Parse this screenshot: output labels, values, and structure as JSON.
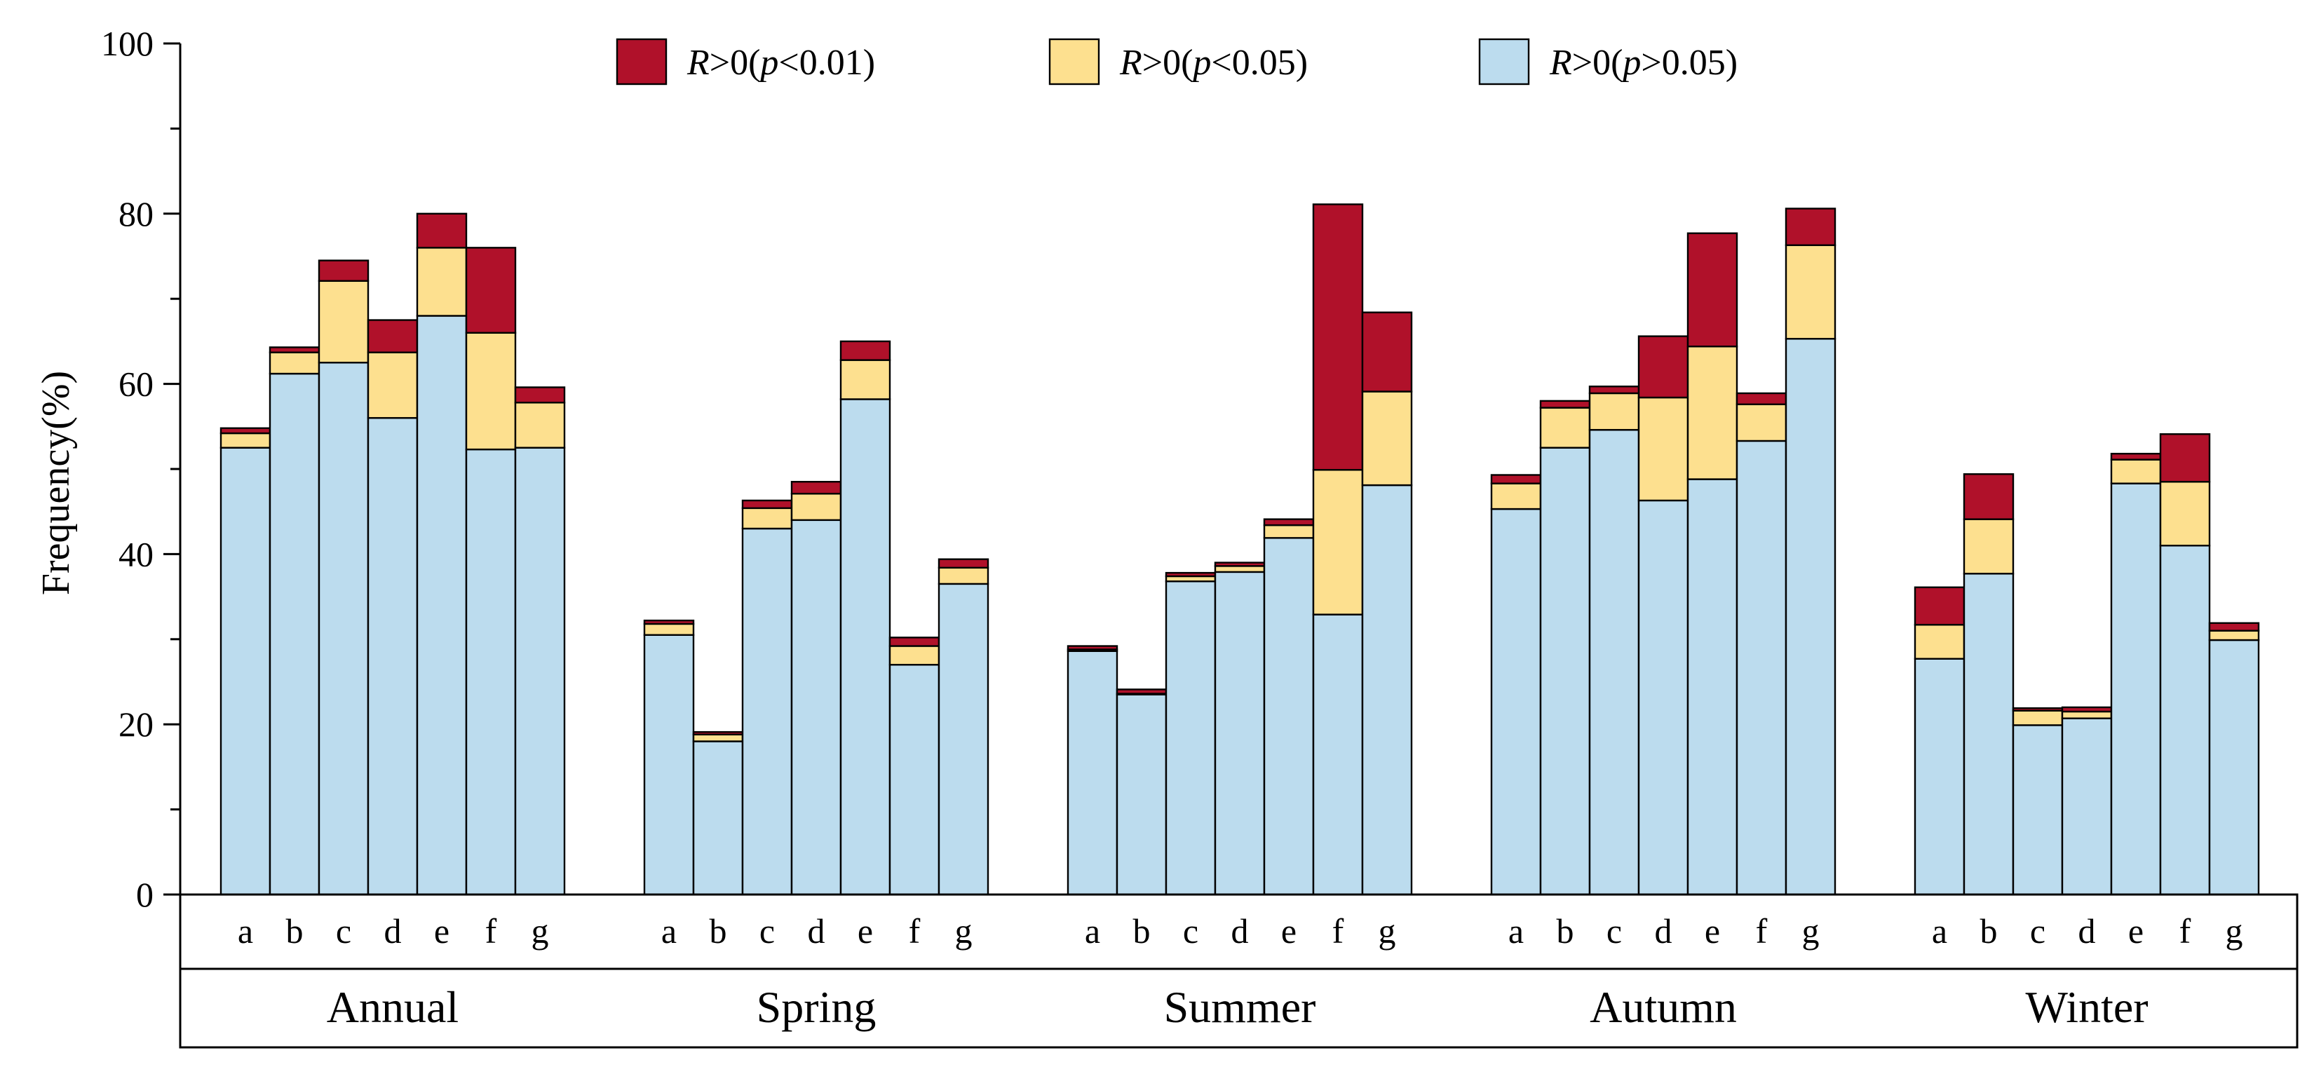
{
  "chart_data": {
    "type": "bar",
    "stacked": true,
    "title": "",
    "xlabel": "",
    "ylabel": "Frequency(%)",
    "ylim": [
      0,
      100
    ],
    "yticks": [
      "0",
      "20",
      "40",
      "60",
      "80",
      "100"
    ],
    "groups": [
      "Annual",
      "Spring",
      "Summer",
      "Autumn",
      "Winter"
    ],
    "categories": [
      "a",
      "b",
      "c",
      "d",
      "e",
      "f",
      "g"
    ],
    "legend": [
      {
        "key": "p001",
        "prefix": "R",
        "text": ">0(",
        "p": "p",
        "rest": "<0.01)",
        "color": "#b0112a"
      },
      {
        "key": "p005",
        "prefix": "R",
        "text": ">0(",
        "p": "p",
        "rest": "<0.05)",
        "color": "#fde08f"
      },
      {
        "key": "pns",
        "prefix": "R",
        "text": ">0(",
        "p": "p",
        "rest": ">0.05)",
        "color": "#bcdcee"
      }
    ],
    "series": [
      {
        "name": "R>0(p>0.05)",
        "color": "#bcdcee",
        "values": [
          [
            52.5,
            61.2,
            62.5,
            56.0,
            68.0,
            52.3,
            52.5
          ],
          [
            30.5,
            18.0,
            43.0,
            44.0,
            58.2,
            27.0,
            36.5
          ],
          [
            28.6,
            23.5,
            36.8,
            37.9,
            41.9,
            32.9,
            48.1
          ],
          [
            45.3,
            52.5,
            54.6,
            46.3,
            48.8,
            53.3,
            65.3
          ],
          [
            27.7,
            37.7,
            19.9,
            20.7,
            48.3,
            41.0,
            29.9
          ]
        ]
      },
      {
        "name": "R>0(p<0.05)",
        "color": "#fde08f",
        "values": [
          [
            1.7,
            2.5,
            9.6,
            7.7,
            8.0,
            13.7,
            5.3
          ],
          [
            1.3,
            0.8,
            2.4,
            3.1,
            4.6,
            2.2,
            1.9
          ],
          [
            0.2,
            0.1,
            0.6,
            0.7,
            1.5,
            17.0,
            11.0
          ],
          [
            3.0,
            4.7,
            4.3,
            12.1,
            15.6,
            4.3,
            11.0
          ],
          [
            4.0,
            6.4,
            1.7,
            0.8,
            2.8,
            7.5,
            1.1
          ]
        ]
      },
      {
        "name": "R>0(p<0.01)",
        "color": "#b0112a",
        "values": [
          [
            0.6,
            0.6,
            2.4,
            3.8,
            4.0,
            10.0,
            1.8
          ],
          [
            0.4,
            0.3,
            0.9,
            1.4,
            2.2,
            1.0,
            1.0
          ],
          [
            0.4,
            0.5,
            0.4,
            0.4,
            0.7,
            31.2,
            9.3
          ],
          [
            1.0,
            0.8,
            0.8,
            7.2,
            13.3,
            1.3,
            4.3
          ],
          [
            4.4,
            5.3,
            0.3,
            0.5,
            0.7,
            5.6,
            0.9
          ]
        ]
      }
    ]
  }
}
